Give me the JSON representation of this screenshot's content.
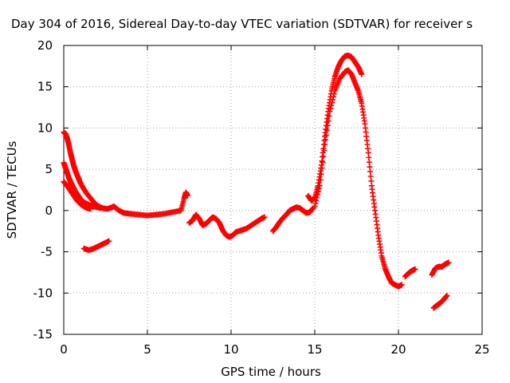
{
  "chart_data": {
    "type": "scatter",
    "title": "Day 304 of 2016, Sidereal Day-to-day VTEC variation (SDTVAR) for receiver s",
    "xlabel": "GPS time / hours",
    "ylabel": "SDTVAR / TECUs",
    "xlim": [
      0,
      25
    ],
    "ylim": [
      -15,
      20
    ],
    "xticks": [
      "0",
      "5",
      "10",
      "15",
      "20",
      "25"
    ],
    "yticks": [
      "-15",
      "-10",
      "-5",
      "0",
      "5",
      "10",
      "15",
      "20"
    ],
    "grid": true,
    "marker": "plus",
    "color": "#ff0000",
    "series": [
      {
        "x": [
          0.0,
          0.1,
          0.2,
          0.3,
          0.4,
          0.5,
          0.6,
          0.7,
          0.8,
          0.9,
          1.0,
          1.2,
          1.4,
          1.6,
          1.8,
          2.0,
          2.3,
          2.6,
          2.9,
          3.0,
          3.3,
          3.6,
          4.0,
          4.5,
          5.0,
          5.5,
          6.0,
          6.5,
          7.0,
          7.2,
          7.3,
          7.4
        ],
        "y": [
          9.5,
          9.3,
          8.8,
          8.0,
          7.0,
          6.2,
          5.4,
          4.8,
          4.3,
          3.8,
          3.3,
          2.6,
          2.0,
          1.5,
          1.0,
          0.6,
          0.3,
          0.2,
          0.4,
          0.5,
          0.0,
          -0.3,
          -0.4,
          -0.5,
          -0.6,
          -0.5,
          -0.4,
          -0.2,
          0.0,
          1.5,
          2.2,
          1.8
        ]
      },
      {
        "x": [
          0.0,
          0.1,
          0.2,
          0.3,
          0.4,
          0.5,
          0.6,
          0.7,
          0.8,
          0.9,
          1.0,
          1.2,
          1.4,
          1.6,
          1.8,
          2.0,
          2.2
        ],
        "y": [
          5.8,
          5.2,
          4.6,
          4.0,
          3.5,
          3.1,
          2.7,
          2.3,
          2.0,
          1.7,
          1.4,
          1.0,
          0.8,
          0.6,
          0.5,
          0.4,
          0.3
        ]
      },
      {
        "x": [
          0.0,
          0.2,
          0.4,
          0.6,
          0.8,
          1.0,
          1.2,
          1.4,
          1.6
        ],
        "y": [
          3.5,
          3.0,
          2.4,
          1.8,
          1.2,
          0.8,
          0.5,
          0.3,
          0.2
        ]
      },
      {
        "x": [
          1.2,
          1.5,
          1.8,
          2.1,
          2.4,
          2.7
        ],
        "y": [
          -4.6,
          -4.8,
          -4.6,
          -4.3,
          -4.0,
          -3.7
        ]
      },
      {
        "x": [
          7.5,
          7.7,
          7.9,
          8.1,
          8.3,
          8.5,
          8.7,
          8.9,
          9.1,
          9.3,
          9.5,
          9.7,
          9.9,
          10.1,
          10.3,
          10.6,
          10.9,
          11.2,
          11.5,
          11.8,
          12.0
        ],
        "y": [
          -1.5,
          -1.2,
          -0.5,
          -1.0,
          -1.8,
          -1.6,
          -1.2,
          -0.8,
          -1.0,
          -1.5,
          -2.4,
          -3.0,
          -3.2,
          -3.0,
          -2.6,
          -2.4,
          -2.2,
          -1.8,
          -1.4,
          -1.0,
          -0.8
        ]
      },
      {
        "x": [
          12.5,
          12.7,
          12.9,
          13.1,
          13.3,
          13.5,
          13.7,
          13.9,
          14.1,
          14.3,
          14.5,
          14.7,
          14.9
        ],
        "y": [
          -2.5,
          -2.0,
          -1.4,
          -0.9,
          -0.5,
          0.0,
          0.2,
          0.4,
          0.3,
          0.0,
          -0.3,
          -0.2,
          0.3
        ]
      },
      {
        "x": [
          14.6,
          14.8,
          15.0,
          15.2,
          15.4,
          15.6,
          15.8,
          16.0,
          16.2,
          16.4,
          16.6,
          16.8,
          17.0,
          17.2,
          17.4,
          17.6,
          17.8
        ],
        "y": [
          1.8,
          1.2,
          1.5,
          3.0,
          5.5,
          9.0,
          12.0,
          14.5,
          16.2,
          17.4,
          18.2,
          18.7,
          18.8,
          18.6,
          18.0,
          17.4,
          16.5
        ]
      },
      {
        "x": [
          15.0,
          15.3,
          15.6,
          15.9,
          16.2,
          16.5,
          16.8,
          17.0,
          17.2,
          17.4,
          17.6,
          17.8,
          18.0,
          18.2,
          18.4,
          18.6,
          18.8,
          19.0,
          19.2,
          19.4,
          19.6,
          19.8,
          20.0,
          20.2
        ],
        "y": [
          0.5,
          3.0,
          8.0,
          12.0,
          14.5,
          16.0,
          16.8,
          17.0,
          16.5,
          15.5,
          14.5,
          13.0,
          10.5,
          7.0,
          3.0,
          0.0,
          -3.0,
          -5.5,
          -7.0,
          -8.0,
          -8.8,
          -9.0,
          -9.2,
          -9.0
        ]
      },
      {
        "x": [
          20.4,
          20.6,
          20.8,
          21.0
        ],
        "y": [
          -8.0,
          -7.6,
          -7.3,
          -7.1
        ]
      },
      {
        "x": [
          22.0,
          22.2,
          22.4,
          22.6,
          22.8,
          23.0
        ],
        "y": [
          -7.8,
          -7.0,
          -6.8,
          -6.8,
          -6.5,
          -6.3
        ]
      },
      {
        "x": [
          22.1,
          22.3,
          22.5,
          22.7,
          22.9
        ],
        "y": [
          -11.8,
          -11.5,
          -11.2,
          -10.8,
          -10.3
        ]
      }
    ]
  }
}
